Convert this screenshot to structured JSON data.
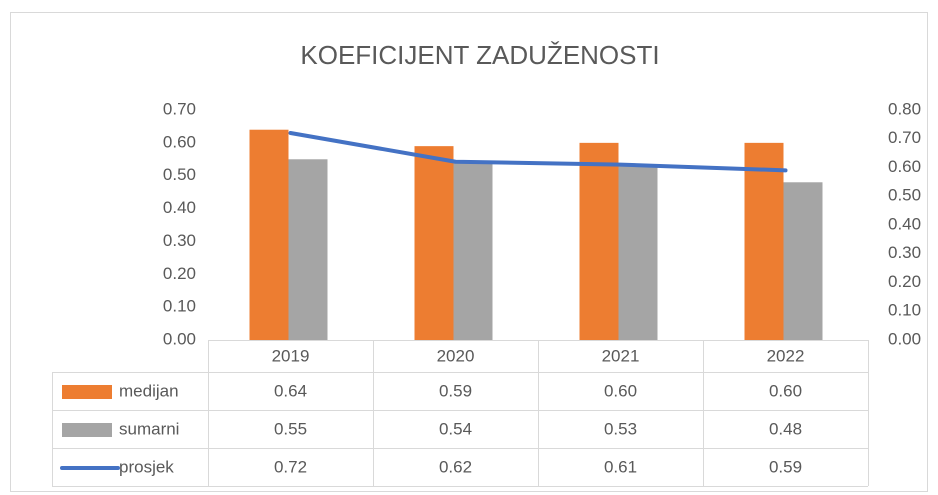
{
  "chart_data": {
    "type": "bar",
    "title": "KOEFICIJENT ZADUŽENOSTI",
    "categories": [
      "2019",
      "2020",
      "2021",
      "2022"
    ],
    "series": [
      {
        "name": "medijan",
        "type": "bar",
        "color": "#ed7d31",
        "values": [
          0.64,
          0.59,
          0.6,
          0.6
        ],
        "value_labels": [
          "0.64",
          "0.59",
          "0.60",
          "0.60"
        ]
      },
      {
        "name": "sumarni",
        "type": "bar",
        "color": "#a5a5a5",
        "values": [
          0.55,
          0.54,
          0.53,
          0.48
        ]
      },
      {
        "name": "prosjek",
        "type": "line",
        "axis": "y2",
        "color": "#4472c4",
        "values": [
          0.72,
          0.62,
          0.61,
          0.59
        ]
      }
    ],
    "ylim": [
      0,
      0.7
    ],
    "yticks": [
      {
        "value": 0,
        "label": "0.00"
      },
      {
        "value": 0.1,
        "label": "0.10"
      },
      {
        "value": 0.2,
        "label": "0.20"
      },
      {
        "value": 0.3,
        "label": "0.30"
      },
      {
        "value": 0.4,
        "label": "0.40"
      },
      {
        "value": 0.5,
        "label": "0.50"
      },
      {
        "value": 0.6,
        "label": "0.60"
      },
      {
        "value": 0.7,
        "label": "0.70"
      }
    ],
    "y2lim": [
      0,
      0.8
    ],
    "y2ticks": [
      {
        "value": 0,
        "label": "0.00"
      },
      {
        "value": 0.1,
        "label": "0.10"
      },
      {
        "value": 0.2,
        "label": "0.20"
      },
      {
        "value": 0.3,
        "label": "0.30"
      },
      {
        "value": 0.4,
        "label": "0.40"
      },
      {
        "value": 0.5,
        "label": "0.50"
      },
      {
        "value": 0.6,
        "label": "0.60"
      },
      {
        "value": 0.7,
        "label": "0.70"
      },
      {
        "value": 0.8,
        "label": "0.80"
      }
    ]
  }
}
